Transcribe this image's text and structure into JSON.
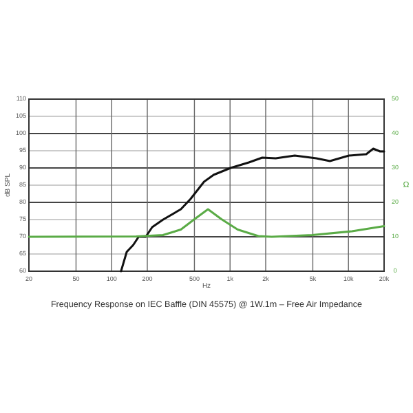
{
  "chart_data": {
    "type": "line",
    "title": "Frequency Response on IEC Baffle (DIN 45575)  @ 1W.1m – Free  Air Impedance",
    "xlabel": "Hz",
    "ylabel": "dB SPL",
    "y2label": "Ω",
    "log": "x",
    "grid": true,
    "xlim": [
      20,
      20000
    ],
    "xticks": [
      20,
      50,
      100,
      200,
      500,
      {
        "value": 1000,
        "label": "1k"
      },
      {
        "value": 2000,
        "label": "2k"
      },
      {
        "value": 5000,
        "label": "5k"
      },
      {
        "value": 10000,
        "label": "10k"
      },
      {
        "value": 20000,
        "label": "20k"
      }
    ],
    "ylim": [
      60,
      110
    ],
    "yticks": [
      60,
      65,
      70,
      75,
      80,
      85,
      90,
      95,
      100,
      105,
      110
    ],
    "y2lim": [
      0,
      50
    ],
    "y2ticks": [
      0,
      10,
      20,
      30,
      40,
      50
    ],
    "series": [
      {
        "color": "#111111",
        "x": [
          120,
          134,
          152,
          169,
          194,
          220,
          272,
          384,
          464,
          603,
          727,
          1010,
          1440,
          1870,
          2430,
          3520,
          5350,
          6970,
          10100,
          14140,
          16200,
          18500,
          20000
        ],
        "values": [
          60,
          65.6,
          67.6,
          70,
          70,
          72.8,
          75,
          78,
          81,
          86,
          88,
          90,
          91.6,
          93,
          92.8,
          93.6,
          92.8,
          92,
          93.6,
          94,
          95.6,
          94.8,
          94.8
        ]
      },
      {
        "color": "#5aab46",
        "axis": "y2",
        "x": [
          20,
          161,
          271,
          384,
          500,
          651,
          847,
          1160,
          1735,
          2250,
          4930,
          10700,
          20000
        ],
        "values": [
          10,
          10.1,
          10.5,
          12.1,
          15.1,
          18,
          15.1,
          12.1,
          10.2,
          10,
          10.5,
          11.6,
          13.1
        ]
      }
    ]
  }
}
